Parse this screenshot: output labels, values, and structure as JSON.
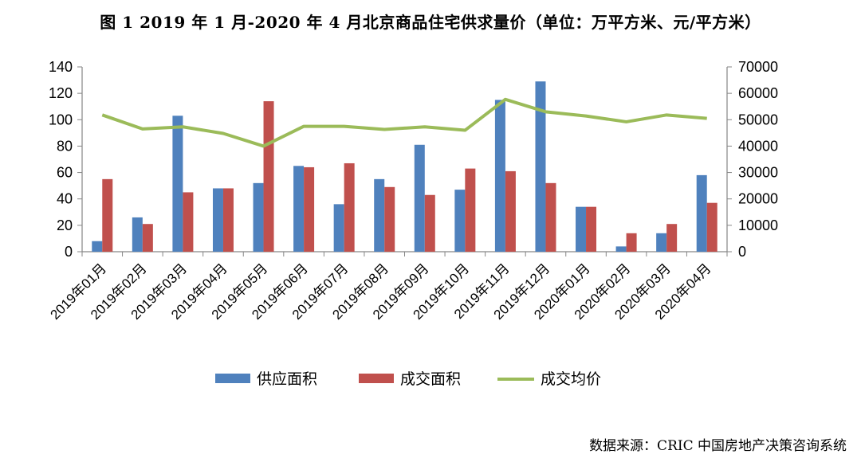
{
  "title": "图 1 2019 年 1 月-2020 年 4 月北京商品住宅供求量价（单位：万平方米、元/平方米）",
  "source": "数据来源：CRIC 中国房地产决策咨询系统",
  "chart_data": {
    "type": "bar",
    "categories": [
      "2019年01月",
      "2019年02月",
      "2019年03月",
      "2019年04月",
      "2019年05月",
      "2019年06月",
      "2019年07月",
      "2019年08月",
      "2019年09月",
      "2019年10月",
      "2019年11月",
      "2019年12月",
      "2020年01月",
      "2020年02月",
      "2020年03月",
      "2020年04月"
    ],
    "series": [
      {
        "name": "供应面积",
        "type": "bar",
        "axis": "left",
        "color": "#4F81BD",
        "values": [
          8,
          26,
          103,
          48,
          52,
          65,
          36,
          55,
          81,
          47,
          115,
          129,
          34,
          4,
          14,
          58
        ]
      },
      {
        "name": "成交面积",
        "type": "bar",
        "axis": "left",
        "color": "#C0504D",
        "values": [
          55,
          21,
          45,
          48,
          114,
          64,
          67,
          49,
          43,
          63,
          61,
          52,
          34,
          14,
          21,
          37
        ]
      },
      {
        "name": "成交均价",
        "type": "line",
        "axis": "right",
        "color": "#9BBB59",
        "values": [
          51800,
          46500,
          47300,
          44800,
          40000,
          47500,
          47500,
          46300,
          47300,
          46000,
          57700,
          53000,
          51400,
          49200,
          51800,
          50500
        ]
      }
    ],
    "y_left": {
      "min": 0,
      "max": 140,
      "ticks": [
        "0",
        "20",
        "40",
        "60",
        "80",
        "100",
        "120",
        "140"
      ]
    },
    "y_right": {
      "min": 0,
      "max": 70000,
      "ticks": [
        "0",
        "10000",
        "20000",
        "30000",
        "40000",
        "50000",
        "60000",
        "70000"
      ]
    },
    "legend_position": "bottom",
    "grid": false
  }
}
